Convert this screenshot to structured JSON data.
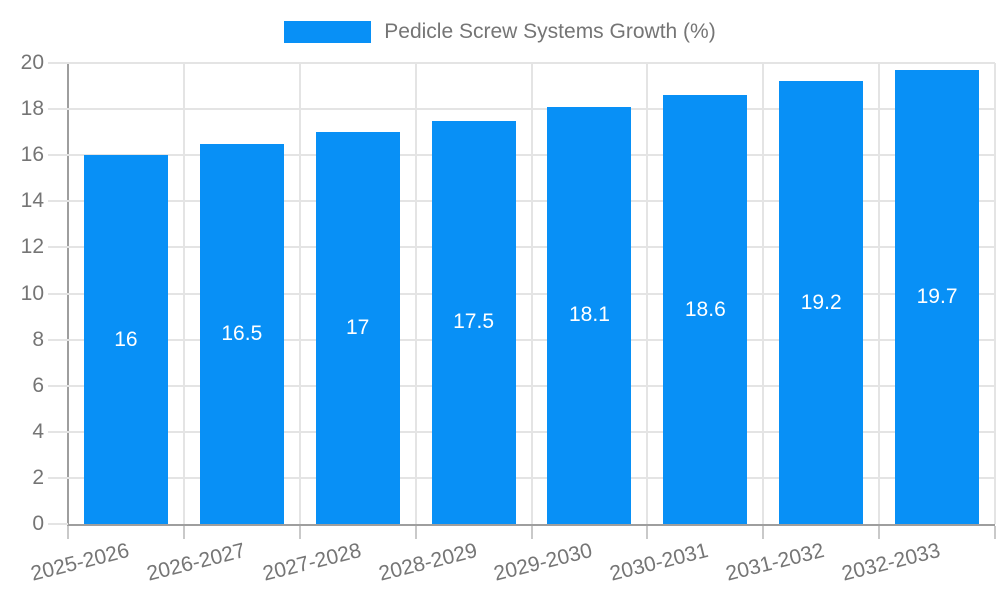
{
  "chart_data": {
    "type": "bar",
    "title": "Pedicle Screw Systems Growth (%)",
    "categories": [
      "2025-2026",
      "2026-2027",
      "2027-2028",
      "2028-2029",
      "2029-2030",
      "2030-2031",
      "2031-2032",
      "2032-2033"
    ],
    "values": [
      16,
      16.5,
      17,
      17.5,
      18.1,
      18.6,
      19.2,
      19.7
    ],
    "bar_labels": [
      "16",
      "16.5",
      "17",
      "17.5",
      "18.1",
      "18.6",
      "19.2",
      "19.7"
    ],
    "xlabel": "",
    "ylabel": "",
    "ylim": [
      0,
      20
    ],
    "y_ticks": [
      0,
      2,
      4,
      6,
      8,
      10,
      12,
      14,
      16,
      18,
      20
    ],
    "grid": true,
    "legend_position": "top",
    "colors": {
      "bar": "#0890F6",
      "bar_label": "#ffffff",
      "grid": "#e4e4e4",
      "axis": "#9e9e9e",
      "x_tick": "#c9c9c9",
      "tick_label": "#757575"
    }
  }
}
